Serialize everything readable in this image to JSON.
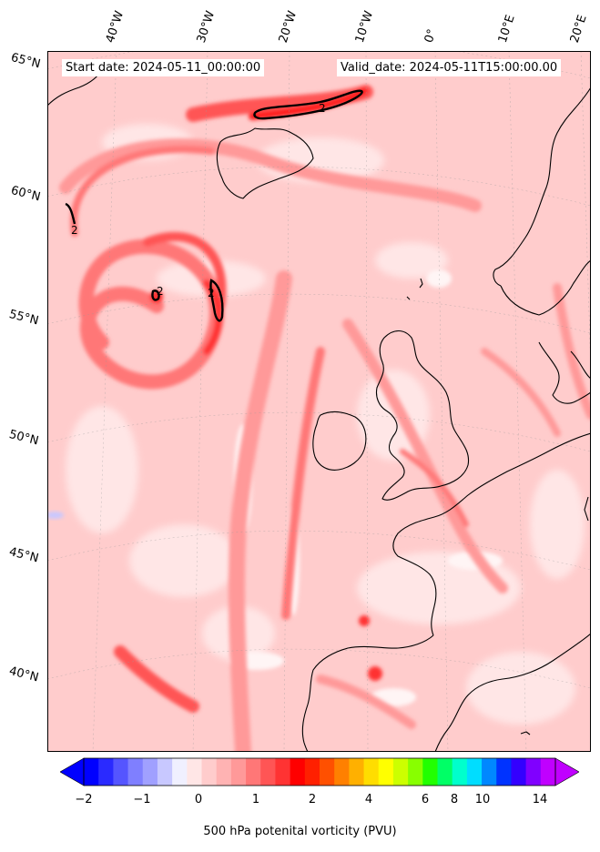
{
  "header": {
    "start_date": "Start date: 2024-05-11_00:00:00",
    "valid_date": "Valid_date: 2024-05-11T15:00:00.00"
  },
  "longitude_labels": [
    "40°W",
    "30°W",
    "20°W",
    "10°W",
    "0°",
    "10°E",
    "20°E"
  ],
  "latitude_labels": [
    "65°N",
    "60°N",
    "55°N",
    "50°N",
    "45°N",
    "40°N"
  ],
  "contour_labels": [
    "2",
    "2",
    "2",
    "2"
  ],
  "colorbar": {
    "title": "500 hPa potenital vorticity (PVU)",
    "ticks": [
      "−2",
      "−1",
      "0",
      "1",
      "2",
      "4",
      "6",
      "8",
      "10",
      "14"
    ],
    "colors": [
      "#0000ff",
      "#2a2aff",
      "#5555ff",
      "#7f7fff",
      "#a0a0ff",
      "#c8c8ff",
      "#f0f0ff",
      "#ffe6e6",
      "#ffcccc",
      "#ffb3b3",
      "#ff9999",
      "#ff7777",
      "#ff5555",
      "#ff3333",
      "#ff0000",
      "#ff2000",
      "#ff5000",
      "#ff8000",
      "#ffb000",
      "#ffdd00",
      "#ffff00",
      "#ccff00",
      "#88ff00",
      "#22ff00",
      "#00ff66",
      "#00ffcc",
      "#00ddff",
      "#0088ff",
      "#0033ff",
      "#3300ff",
      "#8000ff",
      "#c000ff"
    ],
    "under_color": "#0000ff",
    "over_color": "#c000ff"
  }
}
